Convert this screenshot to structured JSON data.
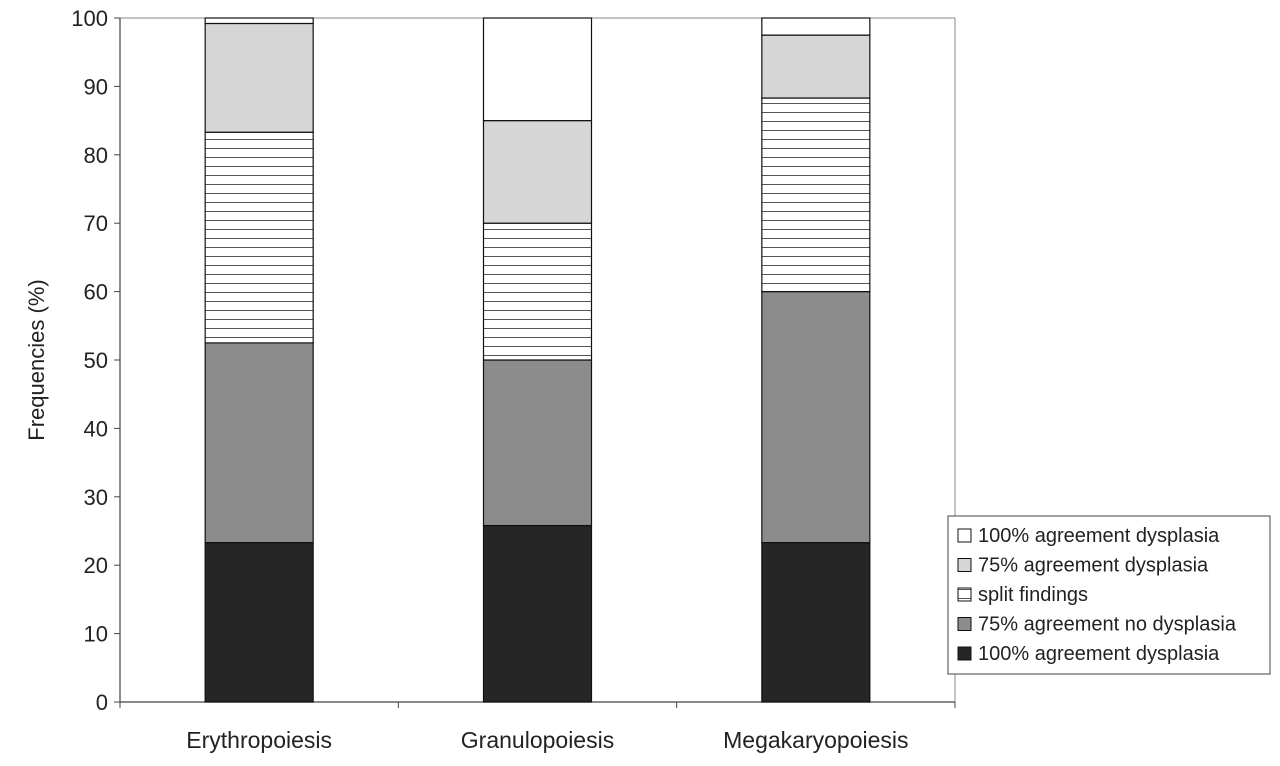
{
  "chart_data": {
    "type": "bar",
    "stacked": true,
    "title": "",
    "xlabel": "",
    "ylabel": "Frequencies (%)",
    "ylim": [
      0,
      100
    ],
    "yticks": [
      0,
      10,
      20,
      30,
      40,
      50,
      60,
      70,
      80,
      90,
      100
    ],
    "categories": [
      "Erythropoiesis",
      "Granulopoiesis",
      "Megakaryopoiesis"
    ],
    "series": [
      {
        "name": "100% agreement dysplasia",
        "values": [
          23.3,
          25.8,
          23.3
        ],
        "color": "#262626",
        "pattern": "solid"
      },
      {
        "name": "75% agreement no dysplasia",
        "values": [
          29.2,
          24.2,
          36.7
        ],
        "color": "#8c8c8c",
        "pattern": "solid"
      },
      {
        "name": "split findings",
        "values": [
          30.8,
          20.0,
          28.3
        ],
        "color": "#ffffff",
        "pattern": "horizontal-lines"
      },
      {
        "name": "75% agreement dysplasia",
        "values": [
          15.9,
          15.0,
          9.2
        ],
        "color": "#d6d6d6",
        "pattern": "solid"
      },
      {
        "name": "100% agreement dysplasia",
        "values": [
          0.8,
          15.0,
          2.5
        ],
        "color": "#ffffff",
        "pattern": "solid"
      }
    ],
    "grid": false,
    "legend_position": "right",
    "legend_order": [
      4,
      3,
      2,
      1,
      0
    ]
  }
}
